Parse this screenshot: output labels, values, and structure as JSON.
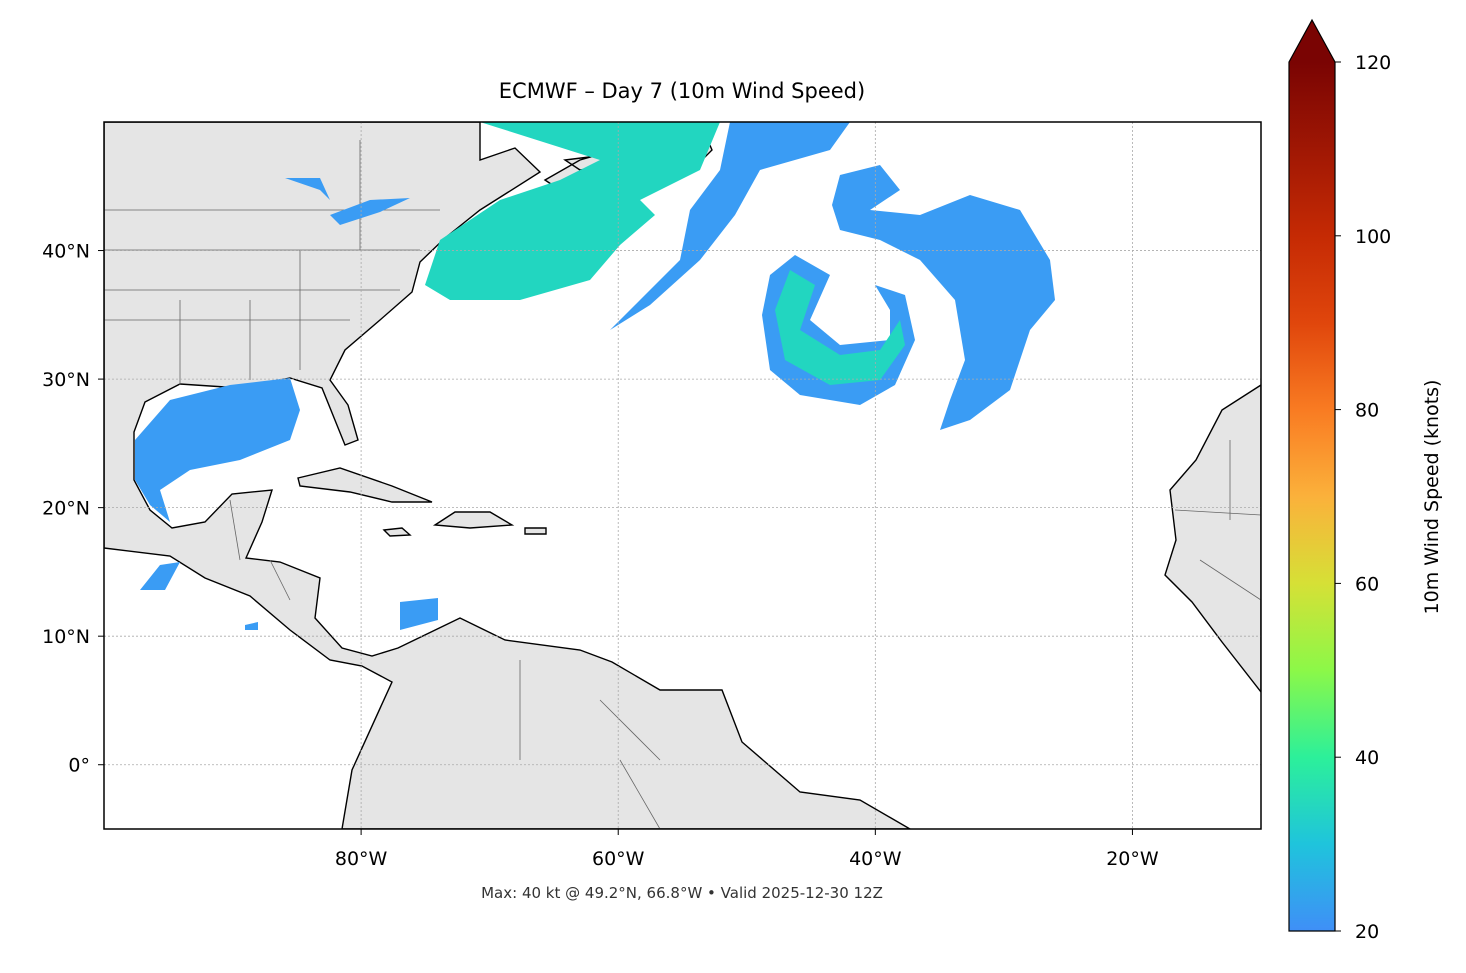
{
  "map": {
    "title": "ECMWF – Day 7 (10m Wind Speed)",
    "footnote": "Max: 40 kt @ 49.2°N, 66.8°W • Valid 2025-12-30 12Z",
    "lon_range": [
      -100,
      -10
    ],
    "lat_range": [
      -5,
      50
    ],
    "lon_ticks": [
      {
        "value": -80,
        "label": "80°W"
      },
      {
        "value": -60,
        "label": "60°W"
      },
      {
        "value": -40,
        "label": "40°W"
      },
      {
        "value": -20,
        "label": "20°W"
      }
    ],
    "lat_ticks": [
      {
        "value": 0,
        "label": "0°"
      },
      {
        "value": 10,
        "label": "10°N"
      },
      {
        "value": 20,
        "label": "20°N"
      },
      {
        "value": 30,
        "label": "30°N"
      },
      {
        "value": 40,
        "label": "40°N"
      }
    ],
    "colorbar": {
      "label": "10m Wind Speed (knots)",
      "range": [
        20,
        120
      ],
      "ticks": [
        20,
        40,
        60,
        80,
        100,
        120
      ]
    }
  }
}
